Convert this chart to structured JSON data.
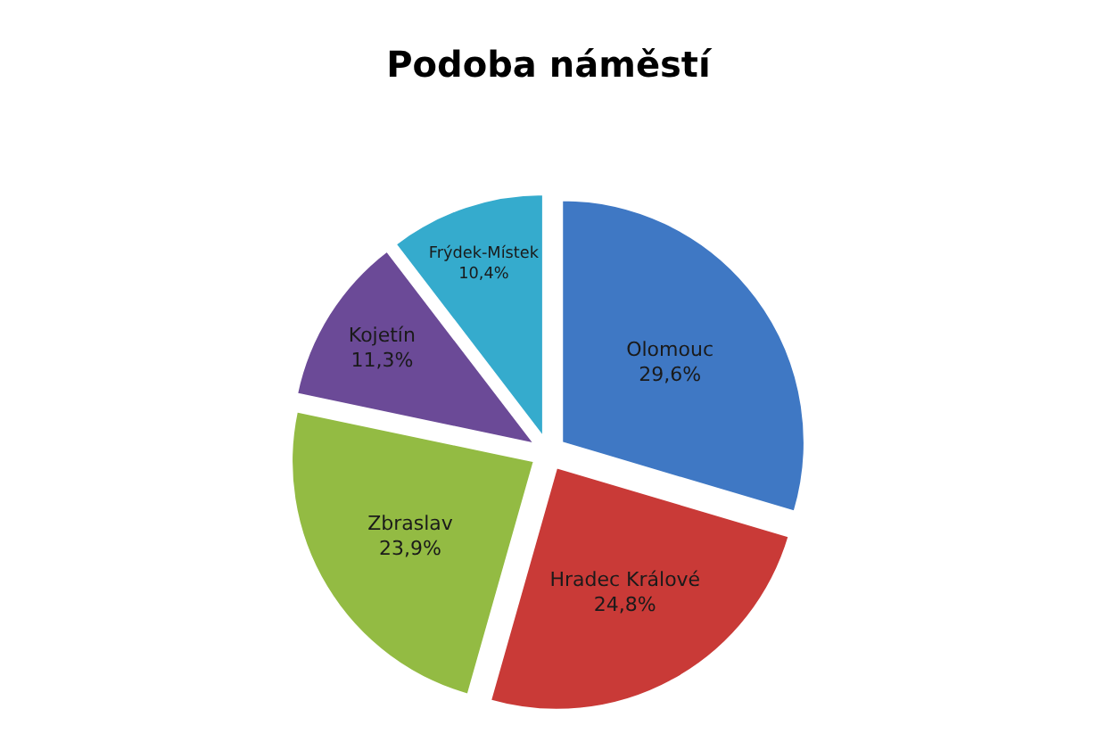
{
  "chart_data": {
    "type": "pie",
    "title": "Podoba náměstí",
    "categories": [
      "Olomouc",
      "Hradec Králové",
      "Zbraslav",
      "Kojetín",
      "Frýdek-Místek"
    ],
    "values": [
      29.6,
      24.8,
      23.9,
      11.3,
      10.4
    ],
    "colors": [
      "#3f78c4",
      "#c93a37",
      "#93bb43",
      "#6b4a97",
      "#35abcd"
    ],
    "value_labels": [
      "29,6%",
      "24,8%",
      "23,9%",
      "11,3%",
      "10,4%"
    ],
    "legend": false
  }
}
